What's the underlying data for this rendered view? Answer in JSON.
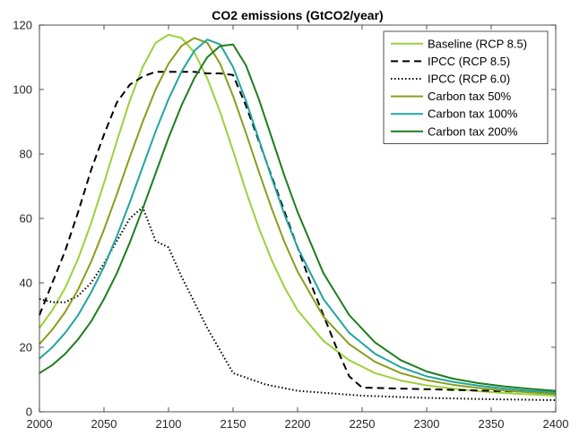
{
  "chart_data": {
    "type": "line",
    "title": "CO2 emissions (GtCO2/year)",
    "xlabel": "",
    "ylabel": "",
    "xlim": [
      2000,
      2400
    ],
    "ylim": [
      0,
      120
    ],
    "xticks": [
      2000,
      2050,
      2100,
      2150,
      2200,
      2250,
      2300,
      2350,
      2400
    ],
    "yticks": [
      0,
      20,
      40,
      60,
      80,
      100,
      120
    ],
    "grid": false,
    "legend_position": "top-right",
    "series": [
      {
        "name": "Baseline (RCP 8.5)",
        "color": "#9ad23a",
        "style": "solid",
        "x": [
          2000,
          2010,
          2020,
          2030,
          2040,
          2050,
          2060,
          2070,
          2080,
          2090,
          2100,
          2110,
          2120,
          2130,
          2140,
          2150,
          2160,
          2170,
          2180,
          2190,
          2200,
          2220,
          2240,
          2260,
          2280,
          2300,
          2320,
          2340,
          2360,
          2380,
          2400
        ],
        "y": [
          26.0,
          31.5,
          38.5,
          47.5,
          58.5,
          71.0,
          84.0,
          96.5,
          107.0,
          114.5,
          117.0,
          116.0,
          111.5,
          103.5,
          93.0,
          81.0,
          68.5,
          57.0,
          47.0,
          38.5,
          31.5,
          22.0,
          16.0,
          12.0,
          9.7,
          8.2,
          7.2,
          6.4,
          5.8,
          5.4,
          5.0
        ]
      },
      {
        "name": "IPCC (RCP 8.5)",
        "color": "#000000",
        "style": "dashed",
        "x": [
          2000,
          2010,
          2020,
          2030,
          2040,
          2050,
          2060,
          2070,
          2080,
          2090,
          2100,
          2110,
          2120,
          2130,
          2140,
          2150,
          2160,
          2170,
          2180,
          2190,
          2200,
          2210,
          2220,
          2230,
          2240,
          2250,
          2300,
          2350,
          2400
        ],
        "y": [
          30.0,
          40.0,
          50.0,
          62.0,
          75.0,
          86.0,
          96.0,
          101.5,
          104.0,
          105.5,
          105.5,
          105.5,
          105.5,
          105.0,
          105.0,
          104.5,
          95.0,
          84.0,
          73.0,
          62.0,
          51.0,
          40.0,
          30.0,
          20.0,
          11.0,
          7.5,
          7.0,
          6.5,
          6.0
        ]
      },
      {
        "name": "IPCC (RCP 6.0)",
        "color": "#000000",
        "style": "dotted",
        "x": [
          2000,
          2010,
          2020,
          2030,
          2040,
          2050,
          2060,
          2070,
          2080,
          2090,
          2100,
          2110,
          2120,
          2130,
          2140,
          2150,
          2175,
          2200,
          2250,
          2300,
          2350,
          2400
        ],
        "y": [
          35.0,
          34.0,
          34.0,
          36.0,
          40.0,
          46.0,
          53.0,
          60.0,
          63.5,
          53.0,
          51.0,
          42.0,
          34.0,
          26.0,
          19.0,
          12.0,
          8.5,
          6.5,
          5.0,
          4.3,
          3.9,
          3.6
        ]
      },
      {
        "name": "Carbon tax 50%",
        "color": "#8c9c1c",
        "style": "solid",
        "x": [
          2000,
          2010,
          2020,
          2030,
          2040,
          2050,
          2060,
          2070,
          2080,
          2090,
          2100,
          2110,
          2120,
          2130,
          2140,
          2150,
          2160,
          2170,
          2180,
          2190,
          2200,
          2220,
          2240,
          2260,
          2280,
          2300,
          2320,
          2340,
          2360,
          2380,
          2400
        ],
        "y": [
          21.0,
          25.5,
          31.0,
          38.0,
          46.5,
          56.5,
          67.5,
          79.0,
          90.0,
          100.0,
          108.0,
          113.5,
          116.0,
          114.5,
          108.0,
          98.0,
          86.5,
          74.5,
          63.0,
          52.5,
          43.5,
          29.5,
          21.0,
          15.5,
          12.0,
          9.8,
          8.4,
          7.4,
          6.6,
          6.0,
          5.5
        ]
      },
      {
        "name": "Carbon tax 100%",
        "color": "#23a4a2",
        "style": "solid",
        "x": [
          2000,
          2010,
          2020,
          2030,
          2040,
          2050,
          2060,
          2070,
          2080,
          2090,
          2100,
          2110,
          2120,
          2130,
          2140,
          2150,
          2160,
          2170,
          2180,
          2190,
          2200,
          2220,
          2240,
          2260,
          2280,
          2300,
          2320,
          2340,
          2360,
          2380,
          2400
        ],
        "y": [
          16.5,
          20.0,
          24.5,
          30.0,
          37.0,
          45.0,
          54.5,
          65.0,
          76.0,
          87.0,
          97.0,
          105.5,
          112.0,
          115.5,
          114.0,
          107.0,
          96.5,
          84.5,
          72.5,
          61.0,
          51.0,
          35.0,
          24.5,
          18.0,
          13.8,
          11.0,
          9.3,
          8.1,
          7.2,
          6.5,
          6.0
        ]
      },
      {
        "name": "Carbon tax 200%",
        "color": "#1e7d1e",
        "style": "solid",
        "x": [
          2000,
          2010,
          2020,
          2030,
          2040,
          2050,
          2060,
          2070,
          2080,
          2090,
          2100,
          2110,
          2120,
          2130,
          2140,
          2150,
          2160,
          2170,
          2180,
          2190,
          2200,
          2220,
          2240,
          2260,
          2280,
          2300,
          2320,
          2340,
          2360,
          2380,
          2400
        ],
        "y": [
          12.0,
          14.5,
          18.0,
          22.5,
          28.0,
          35.0,
          43.0,
          52.5,
          63.0,
          74.0,
          85.0,
          95.0,
          103.5,
          110.0,
          113.5,
          114.0,
          107.5,
          97.0,
          85.0,
          73.0,
          62.0,
          43.0,
          30.0,
          21.5,
          16.0,
          12.5,
          10.3,
          8.9,
          7.9,
          7.1,
          6.5
        ]
      }
    ]
  }
}
